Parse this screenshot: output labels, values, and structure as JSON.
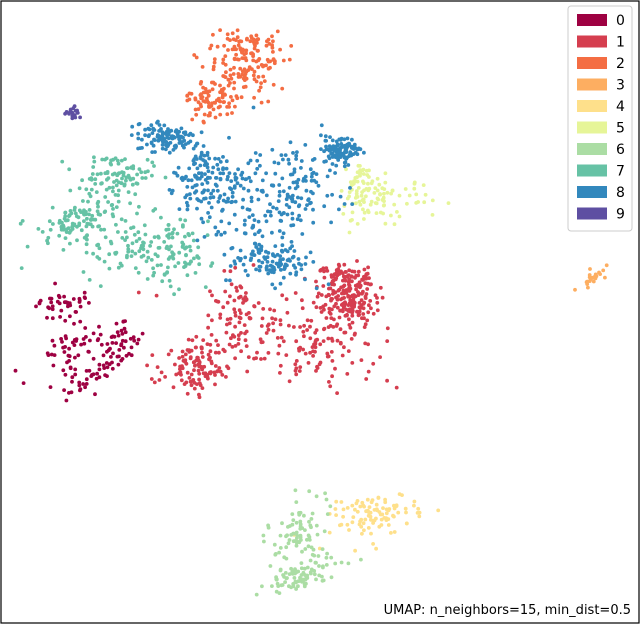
{
  "chart_data": {
    "type": "scatter",
    "title": "",
    "xlabel": "",
    "ylabel": "",
    "annotation": "UMAP: n_neighbors=15, min_dist=0.5",
    "grid": false,
    "axes_ticks": false,
    "legend": {
      "placement": "top-right",
      "entries": [
        "0",
        "1",
        "2",
        "3",
        "4",
        "5",
        "6",
        "7",
        "8",
        "9"
      ]
    },
    "xlim": [
      0,
      100
    ],
    "ylim": [
      0,
      100
    ],
    "series": [
      {
        "name": "0",
        "color": "#9e0142",
        "count": 170,
        "blobs": [
          [
            10,
            51,
            4,
            2.6,
            0
          ],
          [
            11,
            44,
            8,
            2.4,
            32
          ],
          [
            14,
            40,
            5,
            2.2,
            30
          ],
          [
            19,
            45,
            3,
            3,
            40
          ]
        ]
      },
      {
        "name": "1",
        "color": "#d53e4f",
        "count": 560,
        "blobs": [
          [
            37,
            49,
            8,
            6.5,
            0
          ],
          [
            50,
            45,
            8,
            6.5,
            0
          ],
          [
            55,
            51,
            4,
            3,
            0
          ],
          [
            31,
            41,
            5,
            3.5,
            0
          ],
          [
            54,
            55,
            4,
            2.5,
            0
          ]
        ]
      },
      {
        "name": "2",
        "color": "#f46d43",
        "count": 240,
        "blobs": [
          [
            37,
            88,
            6,
            4.2,
            0
          ],
          [
            39,
            92,
            5,
            3,
            0
          ],
          [
            33,
            84,
            3.5,
            3,
            0
          ]
        ]
      },
      {
        "name": "3",
        "color": "#fdae61",
        "count": 25,
        "blobs": [
          [
            92.5,
            55.5,
            0.8,
            2.5,
            -55
          ]
        ]
      },
      {
        "name": "4",
        "color": "#fee08b",
        "count": 100,
        "blobs": [
          [
            59,
            17.5,
            6.5,
            3,
            15
          ]
        ]
      },
      {
        "name": "5",
        "color": "#e6f598",
        "count": 120,
        "blobs": [
          [
            61,
            68,
            6,
            3.2,
            0
          ],
          [
            56,
            70,
            2,
            4.5,
            0
          ]
        ]
      },
      {
        "name": "6",
        "color": "#abdda4",
        "count": 165,
        "blobs": [
          [
            46.5,
            14,
            3.5,
            5,
            -20
          ],
          [
            47,
            7.5,
            6,
            2.5,
            20
          ]
        ]
      },
      {
        "name": "7",
        "color": "#66c2a5",
        "count": 360,
        "blobs": [
          [
            18,
            62,
            8,
            6,
            0
          ],
          [
            27,
            59,
            5,
            5,
            0
          ],
          [
            12,
            65,
            6,
            2.5,
            20
          ],
          [
            18,
            72,
            5,
            3,
            0
          ]
        ]
      },
      {
        "name": "8",
        "color": "#3288bd",
        "count": 660,
        "blobs": [
          [
            38,
            67,
            8,
            8,
            0
          ],
          [
            46,
            70,
            6,
            6,
            0
          ],
          [
            32,
            72,
            5,
            5,
            0
          ],
          [
            26,
            78,
            4,
            2,
            0
          ],
          [
            42,
            58,
            6,
            3,
            0
          ],
          [
            53,
            76,
            2.5,
            2,
            0
          ]
        ]
      },
      {
        "name": "9",
        "color": "#5e4fa2",
        "count": 16,
        "blobs": [
          [
            11.5,
            82,
            1.1,
            0.9,
            0
          ]
        ]
      }
    ]
  }
}
